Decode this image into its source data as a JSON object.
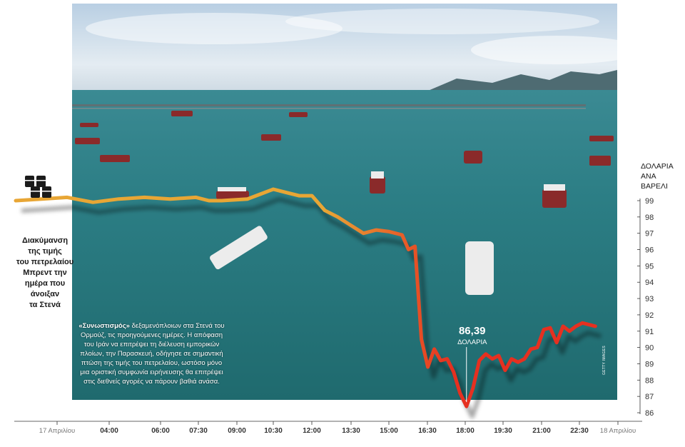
{
  "left_caption": [
    "Διακύμανση",
    "της τιμής",
    "του πετρελαίου",
    "Μπρεντ την",
    "ημέρα που",
    "άνοιξαν",
    "τα Στενά"
  ],
  "unit_label": [
    "ΔΟΛΑΡΙΑ",
    "ΑΝΑ",
    "ΒΑΡΕΛΙ"
  ],
  "photo_caption": {
    "lead": "«Συνωστισμός»",
    "body": " δεξαμενόπλοιων στα Στενά του Ορμούζ, τις προηγούμενες ημέρες. Η απόφαση του Ιράν να επιτρέψει τη διέλευση εμπορικών πλοίων, την Παρασκευή, οδήγησε σε σημαντική πτώση της τιμής του πετρελαίου, ωστόσο μόνο μια οριστική συμφωνία ειρήνευσης θα επιτρέψει στις διεθνείς αγορές να πάρουν βαθιά ανάσα."
  },
  "photo_credit": "GETTY IMAGES",
  "colors": {
    "pre_drop": "#e8a635",
    "post_drop": "#e63020",
    "sea": "#2b7f86",
    "sky": "#c9d8e6",
    "axis_text": "#333333"
  },
  "icon": "oil-barrels-icon",
  "chart_data": {
    "type": "line",
    "x": [
      "00:00",
      "01:00",
      "02:00",
      "03:00",
      "04:00",
      "05:00",
      "06:00",
      "07:00",
      "07:30",
      "08:00",
      "09:00",
      "09:30",
      "10:00",
      "10:30",
      "11:00",
      "11:30",
      "12:00",
      "12:30",
      "13:00",
      "13:30",
      "14:00",
      "14:30",
      "15:00",
      "15:15",
      "15:30",
      "15:45",
      "16:00",
      "16:15",
      "16:30",
      "16:45",
      "17:00",
      "17:15",
      "17:30",
      "17:45",
      "18:00",
      "18:15",
      "18:30",
      "18:45",
      "19:00",
      "19:15",
      "19:30",
      "19:45",
      "20:00",
      "20:15",
      "20:30",
      "20:45",
      "21:00",
      "21:15",
      "21:30",
      "21:45",
      "22:00",
      "22:15",
      "22:30"
    ],
    "values": [
      99,
      99.1,
      99.2,
      98.9,
      99.1,
      99.2,
      99.1,
      99.2,
      99,
      99,
      99.1,
      99.4,
      99.7,
      99.5,
      99.3,
      99.3,
      98.4,
      98,
      97.5,
      97,
      97.2,
      97.1,
      96.9,
      96,
      96.2,
      90.5,
      88.8,
      89.9,
      89.2,
      89.3,
      88.5,
      87.2,
      86.39,
      87.5,
      89.2,
      89.6,
      89.3,
      89.5,
      88.6,
      89.3,
      89.1,
      89.3,
      89.9,
      90,
      91.1,
      91.2,
      90.3,
      91.3,
      91,
      91.3,
      91.5,
      91.4,
      91.3
    ],
    "drop_index": 16,
    "annotation": {
      "value": "86,39",
      "unit": "ΔΟΛΑΡΙΑ",
      "index": 32
    },
    "x_ticks": [
      "17 Απριλίου",
      "04:00",
      "06:00",
      "07:30",
      "09:00",
      "10:30",
      "12:00",
      "13:30",
      "15:00",
      "16:30",
      "18:00",
      "19:30",
      "21:00",
      "22:30",
      "18 Απριλίου"
    ],
    "y_ticks": [
      "99",
      "98",
      "97",
      "96",
      "95",
      "94",
      "93",
      "92",
      "91",
      "90",
      "89",
      "88",
      "87",
      "86"
    ],
    "ylim": [
      86,
      99
    ],
    "grid": false
  }
}
